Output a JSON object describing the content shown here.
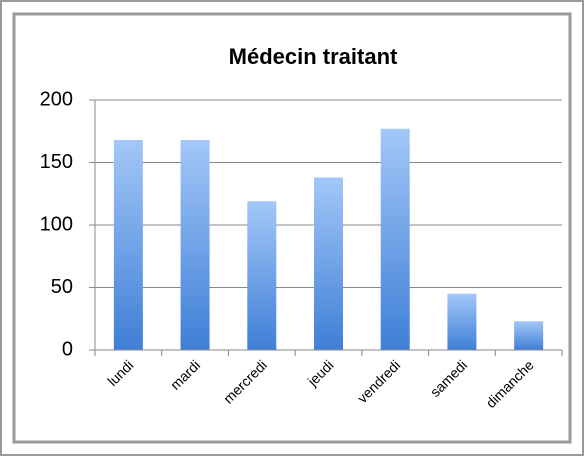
{
  "chart_data": {
    "type": "bar",
    "title": "Médecin traitant",
    "categories": [
      "lundi",
      "mardi",
      "mercredi",
      "jeudi",
      "vendredi",
      "samedi",
      "dimanche"
    ],
    "values": [
      168,
      168,
      119,
      138,
      177,
      45,
      23
    ],
    "color": "#4a86d8",
    "ylim": [
      0,
      200
    ],
    "yticks": [
      0,
      50,
      100,
      150,
      200
    ],
    "grid": true
  }
}
